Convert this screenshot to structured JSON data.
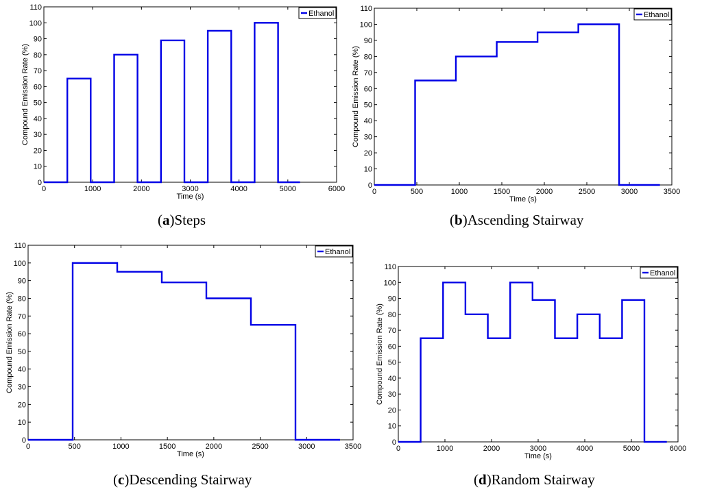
{
  "colors": {
    "series": "#0000e6",
    "axes": "#000000",
    "background": "#ffffff"
  },
  "captions": [
    {
      "letter": "a",
      "text": "Steps"
    },
    {
      "letter": "b",
      "text": "Ascending Stairway"
    },
    {
      "letter": "c",
      "text": "Descending Stairway"
    },
    {
      "letter": "d",
      "text": "Random Stairway"
    }
  ],
  "chart_data": [
    {
      "type": "line",
      "title": "",
      "xlabel": "Time (s)",
      "ylabel": "Compound Emission Rate (%)",
      "xlim": [
        0,
        6000
      ],
      "ylim": [
        0,
        110
      ],
      "xticks": [
        "0",
        "1000",
        "2000",
        "3000",
        "4000",
        "5000",
        "6000"
      ],
      "yticks": [
        "0",
        "10",
        "20",
        "30",
        "40",
        "50",
        "60",
        "70",
        "80",
        "90",
        "100",
        "110"
      ],
      "legend": "top-right",
      "series": [
        {
          "name": "Ethanol",
          "x": [
            0,
            480,
            480,
            960,
            960,
            1440,
            1440,
            1920,
            1920,
            2400,
            2400,
            2880,
            2880,
            3360,
            3360,
            3840,
            3840,
            4320,
            4320,
            4800,
            4800,
            5250
          ],
          "y": [
            0,
            0,
            65,
            65,
            0,
            0,
            80,
            80,
            0,
            0,
            89,
            89,
            0,
            0,
            95,
            95,
            0,
            0,
            100,
            100,
            0,
            0
          ]
        }
      ]
    },
    {
      "type": "line",
      "title": "",
      "xlabel": "Time (s)",
      "ylabel": "Compound Emission Rate (%)",
      "xlim": [
        0,
        3500
      ],
      "ylim": [
        0,
        110
      ],
      "xticks": [
        "0",
        "500",
        "1000",
        "1500",
        "2000",
        "2500",
        "3000",
        "3500"
      ],
      "yticks": [
        "0",
        "10",
        "20",
        "30",
        "40",
        "50",
        "60",
        "70",
        "80",
        "90",
        "100",
        "110"
      ],
      "legend": "top-right",
      "series": [
        {
          "name": "Ethanol",
          "x": [
            0,
            480,
            480,
            960,
            960,
            1440,
            1440,
            1920,
            1920,
            2400,
            2400,
            2880,
            2880,
            3360
          ],
          "y": [
            0,
            0,
            65,
            65,
            80,
            80,
            89,
            89,
            95,
            95,
            100,
            100,
            0,
            0
          ]
        }
      ]
    },
    {
      "type": "line",
      "title": "",
      "xlabel": "Time (s)",
      "ylabel": "Compound Emission Rate (%)",
      "xlim": [
        0,
        3500
      ],
      "ylim": [
        0,
        110
      ],
      "xticks": [
        "0",
        "500",
        "1000",
        "1500",
        "2000",
        "2500",
        "3000",
        "3500"
      ],
      "yticks": [
        "0",
        "10",
        "20",
        "30",
        "40",
        "50",
        "60",
        "70",
        "80",
        "90",
        "100",
        "110"
      ],
      "legend": "top-right",
      "series": [
        {
          "name": "Ethanol",
          "x": [
            0,
            480,
            480,
            960,
            960,
            1440,
            1440,
            1920,
            1920,
            2400,
            2400,
            2880,
            2880,
            3360
          ],
          "y": [
            0,
            0,
            100,
            100,
            95,
            95,
            89,
            89,
            80,
            80,
            65,
            65,
            0,
            0
          ]
        }
      ]
    },
    {
      "type": "line",
      "title": "",
      "xlabel": "Time (s)",
      "ylabel": "Compound Emission Rate (%)",
      "xlim": [
        0,
        6000
      ],
      "ylim": [
        0,
        110
      ],
      "xticks": [
        "0",
        "1000",
        "2000",
        "3000",
        "4000",
        "5000",
        "6000"
      ],
      "yticks": [
        "0",
        "10",
        "20",
        "30",
        "40",
        "50",
        "60",
        "70",
        "80",
        "90",
        "100",
        "110"
      ],
      "legend": "top-right",
      "series": [
        {
          "name": "Ethanol",
          "x": [
            0,
            480,
            480,
            960,
            960,
            1440,
            1440,
            1920,
            1920,
            2400,
            2400,
            2880,
            2880,
            3360,
            3360,
            3840,
            3840,
            4320,
            4320,
            4800,
            4800,
            5280,
            5280,
            5760
          ],
          "y": [
            0,
            0,
            65,
            65,
            100,
            100,
            80,
            80,
            65,
            65,
            100,
            100,
            89,
            89,
            65,
            65,
            80,
            80,
            65,
            65,
            89,
            89,
            0,
            0
          ]
        }
      ]
    }
  ]
}
